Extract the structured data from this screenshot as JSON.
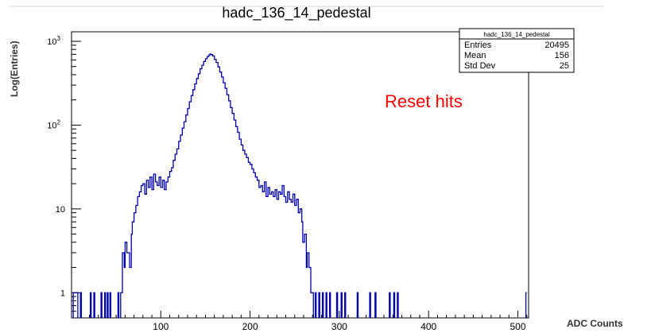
{
  "chart_data": {
    "type": "histogram",
    "title": "hadc_136_14_pedestal",
    "xlabel": "ADC Counts",
    "ylabel": "Log(Entries)",
    "yscale": "log",
    "xlim": [
      0,
      512
    ],
    "ylim": [
      0.5,
      1300
    ],
    "line_color": "#0000aa",
    "x_ticks": [
      {
        "value": 100,
        "label": "100"
      },
      {
        "value": 200,
        "label": "200"
      },
      {
        "value": 300,
        "label": "300"
      },
      {
        "value": 400,
        "label": "400"
      },
      {
        "value": 500,
        "label": "500"
      }
    ],
    "y_ticks": [
      {
        "value": 1,
        "label": "1",
        "sup": ""
      },
      {
        "value": 10,
        "label": "10",
        "sup": ""
      },
      {
        "value": 100,
        "label": "10",
        "sup": "2"
      },
      {
        "value": 1000,
        "label": "10",
        "sup": "3"
      }
    ],
    "stats_box": {
      "name": "hadc_136_14_pedestal",
      "rows": [
        {
          "label": "Entries",
          "value": "20495"
        },
        {
          "label": "Mean",
          "value": "156"
        },
        {
          "label": "Std Dev",
          "value": "25"
        }
      ]
    },
    "annotation": {
      "text": "Reset hits",
      "color": "#ff0000"
    },
    "bins": [
      [
        2,
        1
      ],
      [
        3,
        1
      ],
      [
        4,
        1
      ],
      [
        6,
        1
      ],
      [
        10,
        1
      ],
      [
        21,
        1
      ],
      [
        25,
        1
      ],
      [
        33,
        1
      ],
      [
        37,
        1
      ],
      [
        40,
        1
      ],
      [
        43,
        1
      ],
      [
        52,
        1
      ],
      [
        55,
        1
      ],
      [
        57,
        3
      ],
      [
        59,
        2
      ],
      [
        60,
        4
      ],
      [
        62,
        3
      ],
      [
        64,
        3
      ],
      [
        65,
        2
      ],
      [
        67,
        5
      ],
      [
        68,
        7
      ],
      [
        70,
        9
      ],
      [
        72,
        11
      ],
      [
        74,
        14
      ],
      [
        76,
        16
      ],
      [
        78,
        19
      ],
      [
        80,
        20
      ],
      [
        82,
        15
      ],
      [
        84,
        22
      ],
      [
        86,
        18
      ],
      [
        88,
        24
      ],
      [
        90,
        17
      ],
      [
        92,
        26
      ],
      [
        94,
        21
      ],
      [
        96,
        19
      ],
      [
        98,
        24
      ],
      [
        100,
        18
      ],
      [
        102,
        22
      ],
      [
        104,
        17
      ],
      [
        106,
        21
      ],
      [
        108,
        24
      ],
      [
        110,
        28
      ],
      [
        112,
        31
      ],
      [
        114,
        38
      ],
      [
        116,
        45
      ],
      [
        118,
        52
      ],
      [
        120,
        64
      ],
      [
        122,
        76
      ],
      [
        124,
        92
      ],
      [
        126,
        110
      ],
      [
        128,
        132
      ],
      [
        130,
        158
      ],
      [
        132,
        190
      ],
      [
        134,
        225
      ],
      [
        136,
        265
      ],
      [
        138,
        310
      ],
      [
        140,
        360
      ],
      [
        142,
        410
      ],
      [
        144,
        470
      ],
      [
        146,
        520
      ],
      [
        148,
        575
      ],
      [
        150,
        620
      ],
      [
        152,
        660
      ],
      [
        154,
        690
      ],
      [
        155,
        705
      ],
      [
        156,
        695
      ],
      [
        158,
        670
      ],
      [
        160,
        610
      ],
      [
        162,
        560
      ],
      [
        164,
        495
      ],
      [
        166,
        430
      ],
      [
        168,
        375
      ],
      [
        170,
        320
      ],
      [
        172,
        275
      ],
      [
        174,
        230
      ],
      [
        176,
        195
      ],
      [
        178,
        162
      ],
      [
        180,
        138
      ],
      [
        182,
        115
      ],
      [
        184,
        96
      ],
      [
        186,
        82
      ],
      [
        188,
        68
      ],
      [
        190,
        58
      ],
      [
        192,
        50
      ],
      [
        194,
        45
      ],
      [
        196,
        41
      ],
      [
        198,
        36
      ],
      [
        200,
        34
      ],
      [
        202,
        30
      ],
      [
        204,
        27
      ],
      [
        206,
        24
      ],
      [
        208,
        22
      ],
      [
        210,
        18
      ],
      [
        212,
        19
      ],
      [
        214,
        16
      ],
      [
        216,
        21
      ],
      [
        218,
        14
      ],
      [
        220,
        18
      ],
      [
        222,
        15
      ],
      [
        224,
        16
      ],
      [
        226,
        14
      ],
      [
        228,
        17
      ],
      [
        230,
        13
      ],
      [
        232,
        16
      ],
      [
        234,
        15
      ],
      [
        236,
        19
      ],
      [
        238,
        14
      ],
      [
        240,
        12
      ],
      [
        242,
        16
      ],
      [
        244,
        13
      ],
      [
        246,
        12
      ],
      [
        248,
        15
      ],
      [
        250,
        11
      ],
      [
        252,
        13
      ],
      [
        254,
        9
      ],
      [
        256,
        10
      ],
      [
        258,
        7
      ],
      [
        259,
        4
      ],
      [
        261,
        5
      ],
      [
        263,
        2
      ],
      [
        264,
        3
      ],
      [
        266,
        2
      ],
      [
        268,
        1
      ],
      [
        270,
        1
      ],
      [
        273,
        1
      ],
      [
        277,
        1
      ],
      [
        281,
        1
      ],
      [
        285,
        1
      ],
      [
        289,
        1
      ],
      [
        297,
        1
      ],
      [
        302,
        1
      ],
      [
        306,
        1
      ],
      [
        320,
        1
      ],
      [
        334,
        1
      ],
      [
        340,
        1
      ],
      [
        356,
        1
      ],
      [
        361,
        1
      ],
      [
        365,
        1
      ],
      [
        509,
        1
      ]
    ]
  }
}
